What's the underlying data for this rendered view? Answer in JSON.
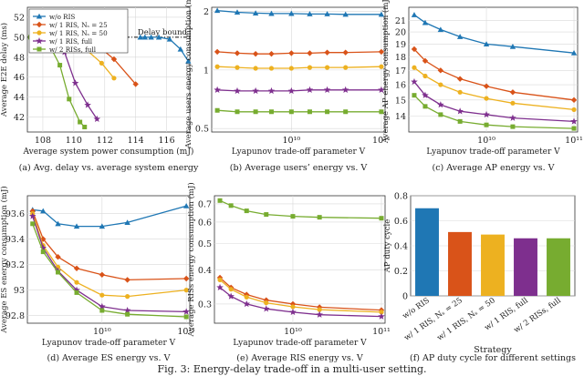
{
  "figure_caption": "Fig. 3: Energy-delay trade-off in a multi-user setting.",
  "legend": [
    {
      "label": "w/o RIS",
      "color": "#1f77b4",
      "marker": "tri"
    },
    {
      "label": "w/ 1 RIS, Nₛ = 25",
      "color": "#d95319",
      "marker": "diamond"
    },
    {
      "label": "w/ 1 RIS, Nₛ = 50",
      "color": "#edb120",
      "marker": "circle"
    },
    {
      "label": "w/ 1 RIS, full",
      "color": "#7e2f8e",
      "marker": "star"
    },
    {
      "label": "w/ 2 RISs, full",
      "color": "#77ac30",
      "marker": "square"
    }
  ],
  "colors": {
    "wo_ris": "#1f77b4",
    "ris25": "#d95319",
    "ris50": "#edb120",
    "ris_full": "#7e2f8e",
    "ris2_full": "#77ac30",
    "bar": "#1f77b4"
  },
  "chart_data": [
    {
      "id": "a",
      "type": "line",
      "caption": "(a) Avg. delay vs. average system energy",
      "xlabel": "Average system power consumption (mJ)",
      "ylabel": "Average E2E delay (ms)",
      "xlim": [
        107,
        117.5
      ],
      "ylim": [
        40.5,
        53
      ],
      "xticks": [
        108,
        110,
        112,
        114,
        116
      ],
      "yticks": [
        42,
        44,
        46,
        48,
        50,
        52
      ],
      "annotation": "Delay bound",
      "delay_bound": 50,
      "series": [
        {
          "name": "w/o RIS",
          "x": [
            114.3,
            114.6,
            115.0,
            115.5,
            116.2,
            116.9,
            117.4
          ],
          "y": [
            50.0,
            50.0,
            50.0,
            50.0,
            49.8,
            48.8,
            47.6
          ]
        },
        {
          "name": "w/ 1 RIS, Nₛ = 25",
          "x": [
            107.6,
            108.2,
            109.0,
            110.0,
            111.2,
            112.6,
            114.0
          ],
          "y": [
            50.0,
            50.0,
            50.0,
            50.0,
            49.6,
            47.8,
            45.3
          ]
        },
        {
          "name": "w/ 1 RIS, Nₛ = 50",
          "x": [
            107.5,
            108.0,
            108.8,
            109.7,
            110.7,
            111.8,
            112.6
          ],
          "y": [
            50.0,
            50.0,
            50.0,
            49.8,
            48.9,
            47.4,
            45.9
          ]
        },
        {
          "name": "w/ 1 RIS, full",
          "x": [
            107.4,
            107.9,
            108.6,
            109.4,
            110.1,
            110.9,
            111.5
          ],
          "y": [
            50.0,
            50.0,
            49.9,
            48.5,
            45.4,
            43.2,
            41.8
          ]
        },
        {
          "name": "w/ 2 RISs, full",
          "x": [
            107.2,
            107.7,
            108.4,
            109.1,
            109.7,
            110.4,
            110.7
          ],
          "y": [
            50.0,
            49.9,
            49.3,
            47.2,
            43.8,
            41.5,
            41.0
          ]
        }
      ]
    },
    {
      "id": "b",
      "type": "line",
      "xscale": "log",
      "yscale": "log",
      "caption": "(b) Average users’ energy vs. V",
      "xlabel": "Lyapunov trade-off parameter V",
      "ylabel": "Average users energy consumption (mJ)",
      "xlim": [
        1300000000.0,
        110000000000.0
      ],
      "ylim": [
        0.48,
        2.1
      ],
      "xticks": [
        "10¹⁰",
        "10¹¹"
      ],
      "xtick_values": [
        10000000000.0,
        100000000000.0
      ],
      "yticks": [
        "0.5",
        "1",
        "2"
      ],
      "ytick_values": [
        0.5,
        1,
        2
      ],
      "x": [
        1500000000.0,
        2500000000.0,
        4000000000.0,
        6000000000.0,
        10000000000.0,
        16000000000.0,
        25000000000.0,
        40000000000.0,
        100000000000.0
      ],
      "series": [
        {
          "name": "w/o RIS",
          "values": [
            2.02,
            1.98,
            1.96,
            1.95,
            1.95,
            1.94,
            1.94,
            1.93,
            1.93
          ]
        },
        {
          "name": "w/ 1 RIS, Nₛ = 25",
          "values": [
            1.24,
            1.22,
            1.21,
            1.21,
            1.22,
            1.22,
            1.23,
            1.23,
            1.24
          ]
        },
        {
          "name": "w/ 1 RIS, Nₛ = 50",
          "values": [
            1.04,
            1.03,
            1.02,
            1.02,
            1.02,
            1.03,
            1.03,
            1.03,
            1.04
          ]
        },
        {
          "name": "w/ 1 RIS, full",
          "values": [
            0.79,
            0.78,
            0.78,
            0.78,
            0.78,
            0.79,
            0.79,
            0.79,
            0.79
          ]
        },
        {
          "name": "w/ 2 RISs, full",
          "values": [
            0.62,
            0.61,
            0.61,
            0.61,
            0.61,
            0.61,
            0.61,
            0.61,
            0.61
          ]
        }
      ]
    },
    {
      "id": "c",
      "type": "line",
      "xscale": "log",
      "yscale": "log",
      "caption": "(c) Average AP energy vs. V",
      "xlabel": "Lyapunov trade-off parameter V",
      "ylabel": "Average AP energy consumption (mJ)",
      "xlim": [
        1300000000.0,
        110000000000.0
      ],
      "ylim": [
        13.1,
        22.2
      ],
      "xticks": [
        "10¹⁰",
        "10¹¹"
      ],
      "xtick_values": [
        10000000000.0,
        100000000000.0
      ],
      "yticks": [
        "14",
        "15",
        "16",
        "17",
        "18",
        "19",
        "20",
        "21"
      ],
      "ytick_values": [
        14,
        15,
        16,
        17,
        18,
        19,
        20,
        21
      ],
      "x": [
        1500000000.0,
        2000000000.0,
        3000000000.0,
        5000000000.0,
        10000000000.0,
        20000000000.0,
        100000000000.0
      ],
      "series": [
        {
          "name": "w/o RIS",
          "values": [
            21.5,
            20.8,
            20.2,
            19.6,
            19.0,
            18.8,
            18.3
          ]
        },
        {
          "name": "w/ 1 RIS, Nₛ = 25",
          "values": [
            18.6,
            17.7,
            17.0,
            16.4,
            15.9,
            15.5,
            15.0
          ]
        },
        {
          "name": "w/ 1 RIS, Nₛ = 50",
          "values": [
            17.2,
            16.6,
            16.0,
            15.5,
            15.1,
            14.8,
            14.4
          ]
        },
        {
          "name": "w/ 1 RIS, full",
          "values": [
            16.2,
            15.3,
            14.7,
            14.3,
            14.1,
            13.9,
            13.7
          ]
        },
        {
          "name": "w/ 2 RISs, full",
          "values": [
            15.3,
            14.6,
            14.1,
            13.7,
            13.5,
            13.4,
            13.3
          ]
        }
      ]
    },
    {
      "id": "d",
      "type": "line",
      "xscale": "log",
      "caption": "(d) Average ES energy vs. V",
      "xlabel": "Lyapunov trade-off parameter V",
      "ylabel": "Average ES energy consumption (mJ)",
      "xlim": [
        1300000000.0,
        110000000000.0
      ],
      "ylim": [
        92.74,
        93.74
      ],
      "xticks": [
        "10¹⁰",
        "10¹¹"
      ],
      "xtick_values": [
        10000000000.0,
        100000000000.0
      ],
      "yticks": [
        "92.8",
        "93",
        "93.2",
        "93.4",
        "93.6"
      ],
      "ytick_values": [
        92.8,
        93.0,
        93.2,
        93.4,
        93.6
      ],
      "x": [
        1500000000.0,
        2000000000.0,
        3000000000.0,
        5000000000.0,
        10000000000.0,
        20000000000.0,
        100000000000.0
      ],
      "series": [
        {
          "name": "w/o RIS",
          "values": [
            93.63,
            93.62,
            93.52,
            93.5,
            93.5,
            93.53,
            93.66
          ]
        },
        {
          "name": "w/ 1 RIS, Nₛ = 25",
          "values": [
            93.62,
            93.4,
            93.26,
            93.17,
            93.12,
            93.08,
            93.09
          ]
        },
        {
          "name": "w/ 1 RIS, Nₛ = 50",
          "values": [
            93.6,
            93.35,
            93.18,
            93.06,
            92.96,
            92.95,
            93.0
          ]
        },
        {
          "name": "w/ 1 RIS, full",
          "values": [
            93.58,
            93.33,
            93.15,
            93.0,
            92.87,
            92.84,
            92.83
          ]
        },
        {
          "name": "w/ 2 RISs, full",
          "values": [
            93.52,
            93.3,
            93.14,
            92.98,
            92.84,
            92.81,
            92.79
          ]
        }
      ]
    },
    {
      "id": "e",
      "type": "line",
      "xscale": "log",
      "yscale": "log",
      "caption": "(e) Average RIS energy vs. V",
      "xlabel": "Lyapunov trade-off parameter V",
      "ylabel": "Average RISs energy consumption (mJ)",
      "xlim": [
        1300000000.0,
        110000000000.0
      ],
      "ylim": [
        0.255,
        0.75
      ],
      "xticks": [
        "10¹⁰",
        "10¹¹"
      ],
      "xtick_values": [
        10000000000.0,
        100000000000.0
      ],
      "yticks": [
        "0.3",
        "0.4",
        "0.5",
        "0.6",
        "0.7"
      ],
      "ytick_values": [
        0.3,
        0.4,
        0.5,
        0.6,
        0.7
      ],
      "x": [
        1500000000.0,
        2000000000.0,
        3000000000.0,
        5000000000.0,
        10000000000.0,
        20000000000.0,
        100000000000.0
      ],
      "series": [
        {
          "name": "w/ 1 RIS, Nₛ = 25",
          "values": [
            0.375,
            0.345,
            0.325,
            0.31,
            0.3,
            0.292,
            0.285
          ]
        },
        {
          "name": "w/ 1 RIS, Nₛ = 50",
          "values": [
            0.368,
            0.34,
            0.318,
            0.303,
            0.293,
            0.286,
            0.28
          ]
        },
        {
          "name": "w/ 1 RIS, full",
          "values": [
            0.345,
            0.32,
            0.3,
            0.288,
            0.28,
            0.274,
            0.27
          ]
        },
        {
          "name": "w/ 2 RISs, full",
          "values": [
            0.72,
            0.69,
            0.66,
            0.64,
            0.63,
            0.625,
            0.62
          ]
        }
      ]
    },
    {
      "id": "f",
      "type": "bar",
      "caption": "(f) AP duty cycle for different settings",
      "xlabel": "Strategy",
      "ylabel": "AP duty cycle",
      "ylim": [
        0,
        0.8
      ],
      "yticks": [
        "0",
        "0.2",
        "0.4",
        "0.6",
        "0.8"
      ],
      "ytick_values": [
        0,
        0.2,
        0.4,
        0.6,
        0.8
      ],
      "categories": [
        "w/o RIS",
        "w/ 1 RIS, Nₛ = 25",
        "w/ 1 RIS, Nₛ = 50",
        "w/ 1 RIS, full",
        "w/ 2 RISs, full"
      ],
      "values": [
        0.7,
        0.51,
        0.49,
        0.46,
        0.46
      ]
    }
  ]
}
